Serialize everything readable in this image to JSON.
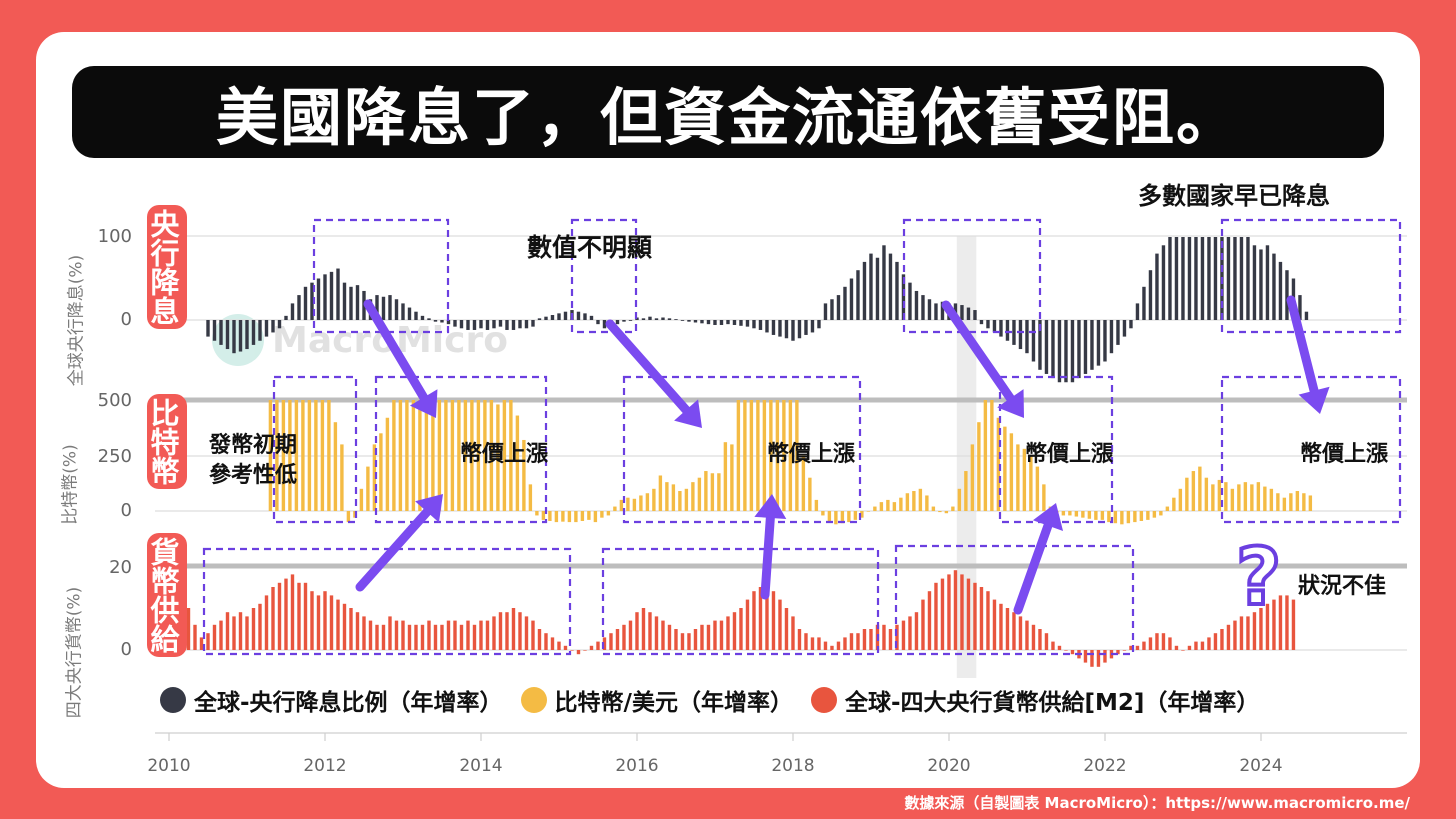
{
  "title": "美國降息了，但資金流通依舊受阻。",
  "source": "數據來源（自製圖表 MacroMicro）：https://www.macromicro.me/",
  "watermark": "MacroMicro",
  "colors": {
    "background": "#f25a55",
    "rate_cut": "#363945",
    "bitcoin": "#f4bb44",
    "m2": "#e8553e",
    "box": "#6b3fe0",
    "arrow": "#7b4bf0",
    "highlight": "#ececec"
  },
  "panels": {
    "rate": {
      "label": "央行降息",
      "axis_label": "全球央行降息(%)"
    },
    "btc": {
      "label": "比特幣",
      "axis_label": "比特幣(%)"
    },
    "m2": {
      "label": "貨幣供給",
      "axis_label": "四大央行貨幣(%)"
    }
  },
  "annotations": {
    "early": [
      "發幣初期",
      "參考性低"
    ],
    "rise_1": "幣價上漲",
    "rise_2": "幣價上漲",
    "rise_3": "幣價上漲",
    "rise_4": "幣價上漲",
    "unclear": "數值不明顯",
    "already_cut": "多數國家早已降息",
    "bad": "狀況不佳",
    "question": "?"
  },
  "legend": [
    {
      "label": "全球-央行降息比例（年增率）",
      "color": "#363945"
    },
    {
      "label": "比特幣/美元（年增率）",
      "color": "#f4bb44"
    },
    {
      "label": "全球-四大央行貨幣供給[M2]（年增率）",
      "color": "#e8553e"
    }
  ],
  "chart_data": {
    "type": "bar",
    "x_ticks": [
      "2010",
      "2012",
      "2014",
      "2016",
      "2018",
      "2020",
      "2022",
      "2024"
    ],
    "x_range": [
      2010,
      2025.75
    ],
    "highlight_period": [
      2020.1,
      2020.35
    ],
    "series": [
      {
        "name": "全球-央行降息比例（年增率）",
        "yticks": [
          "100",
          "0"
        ],
        "ylim": [
          -80,
          125
        ],
        "start": 2010.5,
        "step": 0.08333,
        "values": [
          -20,
          -25,
          -30,
          -35,
          -40,
          -38,
          -35,
          -30,
          -25,
          -20,
          -15,
          -10,
          5,
          20,
          30,
          40,
          45,
          50,
          55,
          58,
          62,
          45,
          40,
          42,
          35,
          25,
          30,
          28,
          30,
          25,
          20,
          15,
          10,
          5,
          2,
          -2,
          -3,
          -5,
          -8,
          -10,
          -12,
          -12,
          -10,
          -12,
          -10,
          -8,
          -12,
          -12,
          -10,
          -10,
          -8,
          2,
          4,
          6,
          8,
          10,
          12,
          10,
          8,
          5,
          -5,
          -10,
          -8,
          -5,
          -2,
          -1,
          3,
          2,
          4,
          2,
          3,
          2,
          1,
          -1,
          -2,
          -3,
          -4,
          -5,
          -6,
          -6,
          -5,
          -6,
          -7,
          -8,
          -10,
          -12,
          -15,
          -18,
          -20,
          -22,
          -25,
          -22,
          -18,
          -15,
          -10,
          20,
          25,
          30,
          40,
          50,
          60,
          70,
          80,
          75,
          90,
          80,
          70,
          55,
          45,
          35,
          30,
          25,
          20,
          22,
          20,
          20,
          18,
          15,
          12,
          -5,
          -10,
          -15,
          -20,
          -25,
          -30,
          -35,
          -40,
          -50,
          -60,
          -65,
          -70,
          -75,
          -75,
          -75,
          -70,
          -65,
          -60,
          -55,
          -50,
          -40,
          -30,
          -20,
          -10,
          20,
          40,
          60,
          80,
          90,
          100,
          100,
          100,
          100,
          100,
          100,
          100,
          100,
          100,
          100,
          100,
          100,
          100,
          90,
          85,
          90,
          80,
          70,
          60,
          50,
          30,
          10
        ]
      },
      {
        "name": "比特幣/美元（年增率）",
        "yticks": [
          "500",
          "250",
          "0"
        ],
        "ylim": [
          -60,
          560
        ],
        "start": 2011.3,
        "step": 0.08333,
        "values": [
          500,
          500,
          500,
          500,
          500,
          500,
          500,
          500,
          500,
          500,
          400,
          300,
          -50,
          -30,
          100,
          200,
          300,
          350,
          420,
          500,
          500,
          500,
          500,
          500,
          500,
          500,
          500,
          500,
          500,
          500,
          500,
          500,
          500,
          500,
          500,
          480,
          500,
          500,
          430,
          320,
          120,
          -20,
          -40,
          -45,
          -50,
          -48,
          -50,
          -50,
          -45,
          -40,
          -50,
          -30,
          -20,
          20,
          50,
          60,
          55,
          70,
          80,
          100,
          160,
          130,
          120,
          90,
          100,
          130,
          150,
          180,
          170,
          170,
          310,
          300,
          500,
          500,
          500,
          500,
          500,
          500,
          500,
          500,
          500,
          500,
          250,
          150,
          50,
          -20,
          -50,
          -60,
          -55,
          -50,
          -40,
          -30,
          0,
          20,
          40,
          50,
          40,
          60,
          80,
          90,
          100,
          70,
          20,
          -5,
          -10,
          20,
          100,
          180,
          300,
          400,
          500,
          500,
          420,
          380,
          350,
          300,
          280,
          250,
          200,
          120,
          20,
          -10,
          -20,
          -20,
          -25,
          -30,
          -35,
          -40,
          -40,
          -50,
          -55,
          -60,
          -55,
          -50,
          -45,
          -40,
          -30,
          -20,
          20,
          60,
          100,
          150,
          180,
          200,
          150,
          120,
          140,
          130,
          100,
          120,
          130,
          120,
          130,
          110,
          100,
          80,
          60,
          80,
          90,
          80,
          70
        ]
      },
      {
        "name": "全球-四大央行貨幣供給[M2]（年增率）",
        "yticks": [
          "20",
          "0"
        ],
        "ylim": [
          -7,
          27
        ],
        "start": 2010.25,
        "step": 0.08333,
        "values": [
          10,
          6,
          3,
          4,
          6,
          7,
          9,
          8,
          9,
          8,
          10,
          11,
          13,
          15,
          16,
          17,
          18,
          16,
          16,
          14,
          13,
          14,
          13,
          12,
          11,
          10,
          9,
          8,
          7,
          6,
          6,
          8,
          7,
          7,
          6,
          6,
          6,
          7,
          6,
          6,
          7,
          7,
          6,
          7,
          6,
          7,
          7,
          8,
          9,
          9,
          10,
          9,
          8,
          7,
          5,
          4,
          3,
          2,
          1,
          0,
          -1,
          0,
          1,
          2,
          3,
          4,
          5,
          6,
          7,
          9,
          10,
          9,
          8,
          7,
          6,
          5,
          4,
          4,
          5,
          6,
          6,
          7,
          7,
          8,
          9,
          10,
          12,
          14,
          15,
          15,
          14,
          12,
          10,
          8,
          5,
          4,
          3,
          3,
          2,
          1,
          2,
          3,
          4,
          4,
          5,
          5,
          6,
          6,
          5,
          6,
          7,
          8,
          9,
          12,
          14,
          16,
          17,
          18,
          19,
          18,
          17,
          16,
          15,
          14,
          12,
          11,
          10,
          9,
          8,
          7,
          6,
          5,
          4,
          2,
          1,
          0,
          -1,
          -2,
          -3,
          -4,
          -4,
          -3,
          -2,
          -1,
          0,
          1,
          1,
          2,
          3,
          4,
          4,
          3,
          1,
          0,
          1,
          2,
          2,
          3,
          4,
          5,
          6,
          7,
          8,
          8,
          9,
          10,
          11,
          12,
          13,
          13,
          12
        ]
      }
    ]
  }
}
